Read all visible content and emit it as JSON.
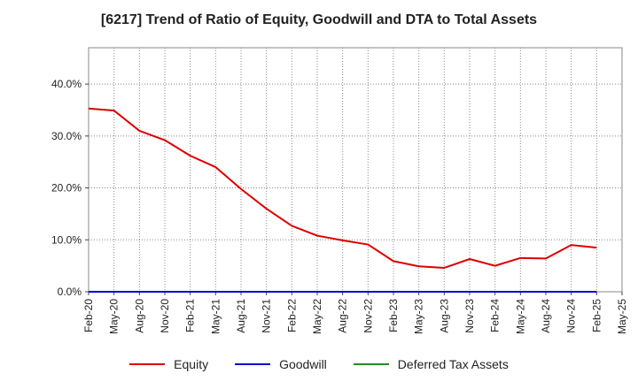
{
  "chart_data": {
    "type": "line",
    "title": "[6217]  Trend of Ratio of Equity, Goodwill and DTA to Total Assets",
    "xlabel": "",
    "ylabel": "",
    "ylim": [
      0,
      47
    ],
    "yticks": [
      0,
      10,
      20,
      30,
      40
    ],
    "ytick_labels": [
      "0.0%",
      "10.0%",
      "20.0%",
      "30.0%",
      "40.0%"
    ],
    "x_tick_labels": [
      "Feb-20",
      "May-20",
      "Aug-20",
      "Nov-20",
      "Feb-21",
      "May-21",
      "Aug-21",
      "Nov-21",
      "Feb-22",
      "May-22",
      "Aug-22",
      "Nov-22",
      "Feb-23",
      "May-23",
      "Aug-23",
      "Nov-23",
      "Feb-24",
      "May-24",
      "Aug-24",
      "Nov-24",
      "Feb-25",
      "May-25"
    ],
    "x": [
      "Feb-20",
      "May-20",
      "Aug-20",
      "Nov-20",
      "Feb-21",
      "May-21",
      "Aug-21",
      "Nov-21",
      "Feb-22",
      "May-22",
      "Aug-22",
      "Nov-22",
      "Feb-23",
      "May-23",
      "Aug-23",
      "Nov-23",
      "Feb-24",
      "May-24",
      "Aug-24",
      "Nov-24",
      "Feb-25"
    ],
    "series": [
      {
        "name": "Equity",
        "color": "#dd0000",
        "values": [
          35.3,
          34.9,
          31.0,
          29.2,
          26.2,
          24.0,
          19.8,
          16.0,
          12.7,
          10.8,
          9.9,
          9.1,
          5.9,
          4.9,
          4.6,
          6.3,
          5.0,
          6.5,
          6.4,
          9.0,
          8.5
        ]
      },
      {
        "name": "Goodwill",
        "color": "#0000cc",
        "values": [
          0,
          0,
          0,
          0,
          0,
          0,
          0,
          0,
          0,
          0,
          0,
          0,
          0,
          0,
          0,
          0,
          0,
          0,
          0,
          0,
          0
        ]
      },
      {
        "name": "Deferred Tax Assets",
        "color": "#228b22",
        "values": [
          0,
          0,
          0,
          0,
          0,
          0,
          0,
          0,
          0,
          0,
          0,
          0,
          0,
          0,
          0,
          0,
          0,
          0,
          0,
          0,
          0
        ]
      }
    ],
    "grid": true,
    "legend_position": "bottom"
  }
}
